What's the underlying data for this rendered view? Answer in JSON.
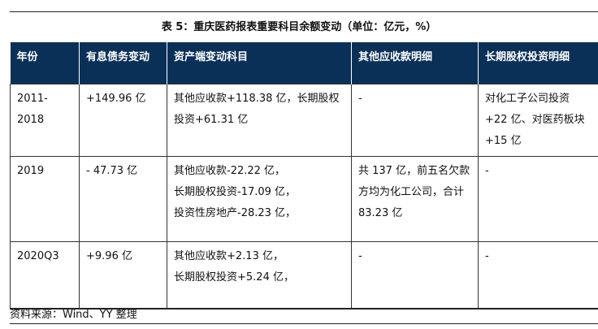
{
  "title": "表 5：重庆医药报表重要科目余额变动（单位：亿元，%）",
  "headers": [
    "年份",
    "有息债务变动",
    "资产端变动科目",
    "其他应收款明细",
    "长期股权投资明细"
  ],
  "rows": [
    {
      "year": "2011-2018",
      "debt": "+149.96 亿",
      "assets": [
        "其他应收款+118.38 亿，长期股权投资+61.31 亿"
      ],
      "other": "-",
      "equity": "对化工子公司投资+22 亿、对医药板块+15 亿"
    },
    {
      "year": "2019",
      "debt": "- 47.73 亿",
      "assets": [
        "其他应收款-22.22 亿，",
        "长期股权投资-17.09 亿，",
        "投资性房地产-28.23 亿，"
      ],
      "other": "共 137 亿，前五名欠款方均为化工公司，合计 83.23 亿",
      "equity": "-"
    },
    {
      "year": "2020Q3",
      "debt": "+9.96 亿",
      "assets": [
        "其他应收款+2.13 亿，",
        "长期股权投资+5.24 亿，"
      ],
      "other": "-",
      "equity": "-"
    }
  ],
  "source": "资料来源：Wind、YY 整理"
}
